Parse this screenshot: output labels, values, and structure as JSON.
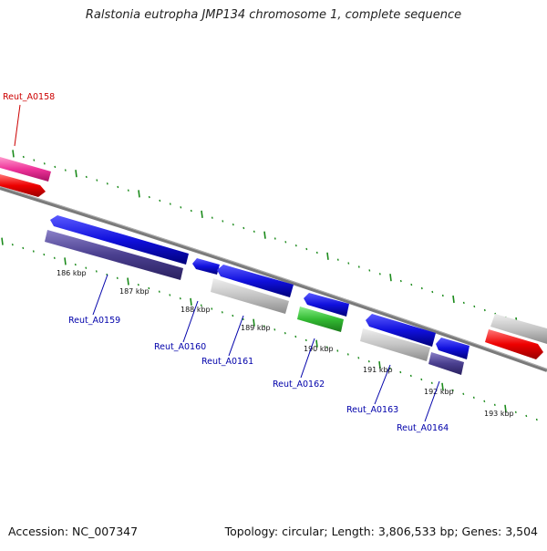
{
  "title": "Ralstonia eutropha JMP134 chromosome 1, complete sequence",
  "accession_label": "Accession: NC_007347",
  "summary_label": "Topology: circular; Length: 3,806,533 bp; Genes: 3,504",
  "scale_labels": [
    "186 kbp",
    "187 kbp",
    "188 kbp",
    "189 kbp",
    "190 kbp",
    "191 kbp",
    "192 kbp",
    "193 kbp"
  ],
  "gene_labels": [
    {
      "text": "Reut_A0158",
      "color": "#cc0000"
    },
    {
      "text": "Reut_A0159",
      "color": "#0000aa"
    },
    {
      "text": "Reut_A0160",
      "color": "#0000aa"
    },
    {
      "text": "Reut_A0161",
      "color": "#0000aa"
    },
    {
      "text": "Reut_A0162",
      "color": "#0000aa"
    },
    {
      "text": "Reut_A0163",
      "color": "#0000aa"
    },
    {
      "text": "Reut_A0164",
      "color": "#0000aa"
    }
  ],
  "colors": {
    "backbone": "#7a7a7a",
    "tick": "#1a8a1a",
    "blue": "#1010dd",
    "dark_purple": "#4a3f8f",
    "gray": "#c4c4c4",
    "green": "#33bb33",
    "red": "#ee0000",
    "pink": "#ee3399"
  }
}
